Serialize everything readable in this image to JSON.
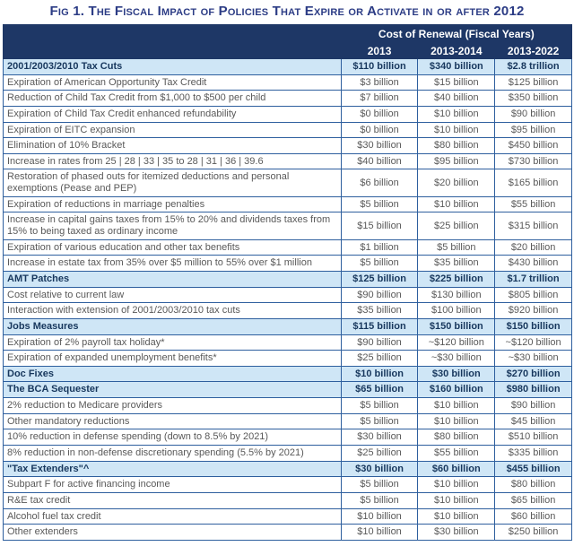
{
  "colors": {
    "title_text": "#2c3c85",
    "header_bg": "#1e3766",
    "header_text": "#ffffff",
    "section_row_bg": "#cfe6f6",
    "section_text": "#17375d",
    "body_text": "#595959",
    "grid_border": "#2e5f9e",
    "item_row_bg": "#ffffff"
  },
  "chart_data": {
    "type": "table",
    "title": "Fig 1. The Fiscal Impact of Policies That Expire or Activate in or after 2012",
    "column_group_label": "Cost of Renewal (Fiscal Years)",
    "columns": [
      "2013",
      "2013-2014",
      "2013-2022"
    ],
    "rows": [
      {
        "type": "section",
        "label": "2001/2003/2010 Tax Cuts",
        "values": [
          "$110 billion",
          "$340 billion",
          "$2.8 trillion"
        ]
      },
      {
        "type": "item",
        "label": "Expiration of American Opportunity Tax Credit",
        "values": [
          "$3 billion",
          "$15 billion",
          "$125 billion"
        ]
      },
      {
        "type": "item",
        "label": "Reduction of Child Tax Credit from $1,000 to $500 per child",
        "values": [
          "$7 billion",
          "$40 billion",
          "$350 billion"
        ]
      },
      {
        "type": "item",
        "label": "Expiration of Child Tax Credit enhanced refundability",
        "values": [
          "$0 billion",
          "$10 billion",
          "$90 billion"
        ]
      },
      {
        "type": "item",
        "label": "Expiration of EITC expansion",
        "values": [
          "$0 billion",
          "$10 billion",
          "$95 billion"
        ]
      },
      {
        "type": "item",
        "label": "Elimination of 10% Bracket",
        "values": [
          "$30 billion",
          "$80 billion",
          "$450 billion"
        ]
      },
      {
        "type": "item",
        "label": "Increase in rates from 25 | 28 | 33 | 35 to 28 | 31 | 36 | 39.6",
        "values": [
          "$40 billion",
          "$95 billion",
          "$730 billion"
        ]
      },
      {
        "type": "item",
        "label": "Restoration of phased outs for itemized deductions and personal exemptions (Pease and PEP)",
        "values": [
          "$6 billion",
          "$20 billion",
          "$165 billion"
        ]
      },
      {
        "type": "item",
        "label": "Expiration of reductions in marriage penalties",
        "values": [
          "$5 billion",
          "$10 billion",
          "$55 billion"
        ]
      },
      {
        "type": "item",
        "label": "Increase in capital gains taxes from 15% to 20% and dividends taxes from 15% to being taxed as ordinary income",
        "values": [
          "$15 billion",
          "$25 billion",
          "$315 billion"
        ]
      },
      {
        "type": "item",
        "label": "Expiration of various education and other tax benefits",
        "values": [
          "$1 billion",
          "$5 billion",
          "$20 billion"
        ]
      },
      {
        "type": "item",
        "label": "Increase in estate tax from 35% over $5 million to 55% over $1 million",
        "values": [
          "$5 billion",
          "$35 billion",
          "$430 billion"
        ]
      },
      {
        "type": "section",
        "label": "AMT Patches",
        "values": [
          "$125 billion",
          "$225 billion",
          "$1.7 trillion"
        ]
      },
      {
        "type": "item",
        "label": "Cost relative to current law",
        "values": [
          "$90 billion",
          "$130 billion",
          "$805 billion"
        ]
      },
      {
        "type": "item",
        "label": "Interaction with extension of 2001/2003/2010 tax cuts",
        "values": [
          "$35 billion",
          "$100 billion",
          "$920 billion"
        ]
      },
      {
        "type": "section",
        "label": "Jobs Measures",
        "values": [
          "$115 billion",
          "$150 billion",
          "$150 billion"
        ]
      },
      {
        "type": "item",
        "label": "Expiration of 2% payroll tax holiday*",
        "values": [
          "$90 billion",
          "~$120 billion",
          "~$120 billion"
        ]
      },
      {
        "type": "item",
        "label": "Expiration of expanded unemployment benefits*",
        "values": [
          "$25 billion",
          "~$30 billion",
          "~$30 billion"
        ]
      },
      {
        "type": "section",
        "label": "Doc Fixes",
        "values": [
          "$10 billion",
          "$30 billion",
          "$270 billion"
        ]
      },
      {
        "type": "section",
        "label": "The BCA Sequester",
        "values": [
          "$65 billion",
          "$160 billion",
          "$980 billion"
        ]
      },
      {
        "type": "item",
        "label": "2% reduction to Medicare providers",
        "values": [
          "$5 billion",
          "$10 billion",
          "$90 billion"
        ]
      },
      {
        "type": "item",
        "label": "Other mandatory reductions",
        "values": [
          "$5 billion",
          "$10 billion",
          "$45 billion"
        ]
      },
      {
        "type": "item",
        "label": "10% reduction in defense spending (down to 8.5% by 2021)",
        "values": [
          "$30 billion",
          "$80 billion",
          "$510 billion"
        ]
      },
      {
        "type": "item",
        "label": "8% reduction in non-defense discretionary spending (5.5% by 2021)",
        "values": [
          "$25 billion",
          "$55 billion",
          "$335 billion"
        ]
      },
      {
        "type": "section",
        "label": "\"Tax Extenders\"^",
        "values": [
          "$30 billion",
          "$60 billion",
          "$455 billion"
        ]
      },
      {
        "type": "item",
        "label": "Subpart F for active financing income",
        "values": [
          "$5 billion",
          "$10 billion",
          "$80 billion"
        ]
      },
      {
        "type": "item",
        "label": "R&E tax credit",
        "values": [
          "$5 billion",
          "$10 billion",
          "$65 billion"
        ]
      },
      {
        "type": "item",
        "label": "Alcohol fuel tax credit",
        "values": [
          "$10 billion",
          "$10 billion",
          "$60 billion"
        ]
      },
      {
        "type": "item",
        "label": "Other extenders",
        "values": [
          "$10 billion",
          "$30 billion",
          "$250 billion"
        ]
      }
    ]
  }
}
